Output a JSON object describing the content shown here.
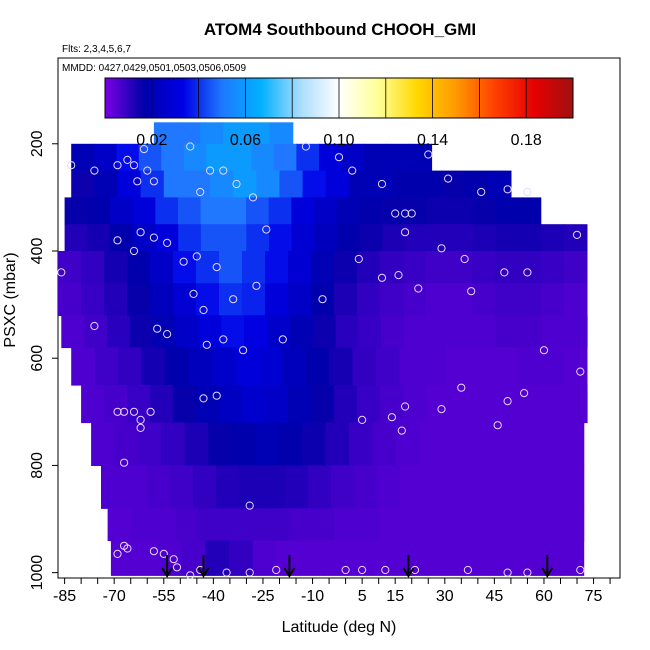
{
  "chart_data": {
    "type": "heatmap",
    "title": "ATOM4 Southbound CHOOH_GMI",
    "flights_note": "Flts: 2,3,4,5,6,7",
    "dates_note": "MMDD: 0427,0429,0501,0503,0506,0509",
    "xlabel": "Latitude (deg N)",
    "ylabel": "PSXC (mbar)",
    "xlim": [
      -87,
      83
    ],
    "ylim": [
      1010,
      40
    ],
    "x_ticks": [
      -85,
      -70,
      -55,
      -40,
      -25,
      -10,
      5,
      15,
      30,
      45,
      60,
      75
    ],
    "y_ticks": [
      200,
      400,
      600,
      800,
      1000
    ],
    "grid": false,
    "colorbar": {
      "location": "top",
      "range": [
        0.0,
        0.2
      ],
      "tick_values": [
        0.02,
        0.06,
        0.1,
        0.14,
        0.18
      ],
      "tick_labels": [
        "0.02",
        "0.06",
        "0.10",
        "0.14",
        "0.18"
      ],
      "colors": [
        "#7a00e6",
        "#0000a8",
        "#0000e6",
        "#1f78ff",
        "#00b0ff",
        "#a8dcff",
        "#ffffff",
        "#ffff99",
        "#ffd700",
        "#ff9900",
        "#ff4000",
        "#e60000",
        "#a01010"
      ]
    },
    "field": {
      "lat_bins": [
        -87,
        -80,
        -73,
        -66,
        -59,
        -52,
        -45,
        -38,
        -31,
        -24,
        -17,
        -10,
        -3,
        4,
        11,
        18,
        25,
        32,
        39,
        46,
        53,
        60,
        67,
        73
      ],
      "rows": [
        {
          "p": [
            160,
            200
          ],
          "lat_range": [
            -58,
            -16
          ],
          "values": [
            0.05,
            0.05,
            0.055,
            0.06,
            0.06,
            0.055
          ]
        },
        {
          "p": [
            200,
            250
          ],
          "lat_range": [
            -83,
            26
          ],
          "values": [
            0.02,
            0.025,
            0.035,
            0.045,
            0.05,
            0.055,
            0.06,
            0.06,
            0.055,
            0.05,
            0.04,
            0.03,
            0.025,
            0.02,
            0.02,
            0.02
          ]
        },
        {
          "p": [
            250,
            300
          ],
          "lat_range": [
            -83,
            50
          ],
          "values": [
            0.015,
            0.02,
            0.03,
            0.04,
            0.05,
            0.05,
            0.055,
            0.06,
            0.055,
            0.045,
            0.035,
            0.03,
            0.02,
            0.02,
            0.018,
            0.018,
            0.016,
            0.018,
            0.02
          ]
        },
        {
          "p": [
            300,
            350
          ],
          "lat_range": [
            -85,
            59
          ],
          "values": [
            0.016,
            0.018,
            0.025,
            0.03,
            0.04,
            0.045,
            0.05,
            0.05,
            0.045,
            0.04,
            0.03,
            0.025,
            0.02,
            0.018,
            0.016,
            0.016,
            0.015,
            0.015,
            0.016,
            0.018,
            0.018
          ]
        },
        {
          "p": [
            350,
            400
          ],
          "lat_range": [
            -85,
            73
          ],
          "values": [
            0.012,
            0.014,
            0.018,
            0.025,
            0.03,
            0.04,
            0.045,
            0.045,
            0.04,
            0.035,
            0.028,
            0.022,
            0.018,
            0.015,
            0.013,
            0.012,
            0.012,
            0.012,
            0.013,
            0.014,
            0.014,
            0.013,
            0.012
          ]
        },
        {
          "p": [
            400,
            460
          ],
          "lat_range": [
            -87,
            73
          ],
          "values": [
            0.008,
            0.01,
            0.014,
            0.018,
            0.025,
            0.035,
            0.04,
            0.045,
            0.04,
            0.035,
            0.028,
            0.02,
            0.015,
            0.012,
            0.01,
            0.009,
            0.008,
            0.008,
            0.009,
            0.01,
            0.01,
            0.009,
            0.008
          ]
        },
        {
          "p": [
            460,
            520
          ],
          "lat_range": [
            -87,
            73
          ],
          "values": [
            0.007,
            0.009,
            0.012,
            0.016,
            0.022,
            0.028,
            0.035,
            0.04,
            0.038,
            0.03,
            0.025,
            0.018,
            0.013,
            0.01,
            0.008,
            0.007,
            0.006,
            0.006,
            0.007,
            0.008,
            0.008,
            0.007,
            0.006
          ]
        },
        {
          "p": [
            520,
            580
          ],
          "lat_range": [
            -86,
            73
          ],
          "values": [
            0.006,
            0.008,
            0.011,
            0.015,
            0.02,
            0.025,
            0.03,
            0.035,
            0.032,
            0.026,
            0.02,
            0.015,
            0.011,
            0.009,
            0.007,
            0.006,
            0.006,
            0.006,
            0.006,
            0.007,
            0.007,
            0.006,
            0.006
          ]
        },
        {
          "p": [
            580,
            650
          ],
          "lat_range": [
            -83,
            73
          ],
          "values": [
            0.006,
            0.008,
            0.01,
            0.014,
            0.018,
            0.022,
            0.026,
            0.03,
            0.028,
            0.022,
            0.018,
            0.014,
            0.01,
            0.008,
            0.006,
            0.006,
            0.005,
            0.005,
            0.005,
            0.006,
            0.006,
            0.005
          ]
        },
        {
          "p": [
            650,
            720
          ],
          "lat_range": [
            -80,
            73
          ],
          "values": [
            0.006,
            0.007,
            0.009,
            0.012,
            0.016,
            0.02,
            0.024,
            0.027,
            0.025,
            0.02,
            0.016,
            0.012,
            0.009,
            0.007,
            0.006,
            0.005,
            0.005,
            0.005,
            0.005,
            0.005,
            0.005,
            0.005
          ]
        },
        {
          "p": [
            720,
            800
          ],
          "lat_range": [
            -77,
            72
          ],
          "values": [
            0.006,
            0.007,
            0.008,
            0.01,
            0.013,
            0.016,
            0.018,
            0.02,
            0.018,
            0.015,
            0.012,
            0.009,
            0.007,
            0.006,
            0.005,
            0.005,
            0.005,
            0.005,
            0.005,
            0.005,
            0.005
          ]
        },
        {
          "p": [
            800,
            880
          ],
          "lat_range": [
            -74,
            72
          ],
          "values": [
            0.006,
            0.006,
            0.007,
            0.008,
            0.01,
            0.012,
            0.013,
            0.013,
            0.012,
            0.01,
            0.008,
            0.007,
            0.006,
            0.005,
            0.005,
            0.005,
            0.005,
            0.005,
            0.005,
            0.005,
            0.005
          ]
        },
        {
          "p": [
            880,
            940
          ],
          "lat_range": [
            -72,
            72
          ],
          "values": [
            0.005,
            0.006,
            0.006,
            0.007,
            0.008,
            0.008,
            0.008,
            0.008,
            0.007,
            0.007,
            0.006,
            0.006,
            0.005,
            0.005,
            0.005,
            0.005,
            0.005,
            0.005,
            0.005,
            0.005,
            0.005
          ]
        },
        {
          "p": [
            940,
            1005
          ],
          "lat_range": [
            -71,
            72
          ],
          "values": [
            0.005,
            0.005,
            0.006,
            0.007,
            0.012,
            0.01,
            0.006,
            0.005,
            0.005,
            0.005,
            0.005,
            0.005,
            0.005,
            0.005,
            0.005,
            0.005,
            0.005,
            0.005,
            0.005,
            0.005
          ]
        }
      ]
    },
    "arrows": [
      -54,
      -43,
      -17,
      19,
      61
    ],
    "observations": [
      {
        "lat": -83,
        "p": 240
      },
      {
        "lat": -76,
        "p": 250
      },
      {
        "lat": -69,
        "p": 240
      },
      {
        "lat": -66,
        "p": 230
      },
      {
        "lat": -64,
        "p": 240
      },
      {
        "lat": -63,
        "p": 270
      },
      {
        "lat": -61,
        "p": 210
      },
      {
        "lat": -60,
        "p": 250
      },
      {
        "lat": -58,
        "p": 270
      },
      {
        "lat": -47,
        "p": 205
      },
      {
        "lat": -44,
        "p": 290
      },
      {
        "lat": -41,
        "p": 250
      },
      {
        "lat": -37,
        "p": 250
      },
      {
        "lat": -33,
        "p": 275
      },
      {
        "lat": -28,
        "p": 300
      },
      {
        "lat": -12,
        "p": 205
      },
      {
        "lat": -2,
        "p": 225
      },
      {
        "lat": 2,
        "p": 250
      },
      {
        "lat": 11,
        "p": 275
      },
      {
        "lat": 25,
        "p": 220
      },
      {
        "lat": 31,
        "p": 265
      },
      {
        "lat": 41,
        "p": 290
      },
      {
        "lat": 49,
        "p": 285
      },
      {
        "lat": 55,
        "p": 290
      },
      {
        "lat": -69,
        "p": 380
      },
      {
        "lat": -64,
        "p": 400
      },
      {
        "lat": -62,
        "p": 365
      },
      {
        "lat": -58,
        "p": 375
      },
      {
        "lat": -54,
        "p": 385
      },
      {
        "lat": -49,
        "p": 420
      },
      {
        "lat": -45,
        "p": 410
      },
      {
        "lat": -39,
        "p": 430
      },
      {
        "lat": -24,
        "p": 360
      },
      {
        "lat": -34,
        "p": 490
      },
      {
        "lat": -27,
        "p": 465
      },
      {
        "lat": -46,
        "p": 480
      },
      {
        "lat": -43,
        "p": 510
      },
      {
        "lat": -7,
        "p": 490
      },
      {
        "lat": 4,
        "p": 415
      },
      {
        "lat": 11,
        "p": 450
      },
      {
        "lat": 15,
        "p": 330
      },
      {
        "lat": 18,
        "p": 330
      },
      {
        "lat": 20,
        "p": 330
      },
      {
        "lat": 18,
        "p": 365
      },
      {
        "lat": 16,
        "p": 445
      },
      {
        "lat": 22,
        "p": 470
      },
      {
        "lat": 29,
        "p": 395
      },
      {
        "lat": 36,
        "p": 415
      },
      {
        "lat": 38,
        "p": 475
      },
      {
        "lat": 48,
        "p": 440
      },
      {
        "lat": 55,
        "p": 440
      },
      {
        "lat": 70,
        "p": 370
      },
      {
        "lat": -86,
        "p": 440
      },
      {
        "lat": -76,
        "p": 540
      },
      {
        "lat": -57,
        "p": 545
      },
      {
        "lat": -54,
        "p": 555
      },
      {
        "lat": -42,
        "p": 575
      },
      {
        "lat": -31,
        "p": 585
      },
      {
        "lat": -37,
        "p": 565
      },
      {
        "lat": -19,
        "p": 565
      },
      {
        "lat": 60,
        "p": 585
      },
      {
        "lat": -43,
        "p": 675
      },
      {
        "lat": -39,
        "p": 670
      },
      {
        "lat": 71,
        "p": 625
      },
      {
        "lat": 35,
        "p": 655
      },
      {
        "lat": 54,
        "p": 665
      },
      {
        "lat": 49,
        "p": 680
      },
      {
        "lat": 29,
        "p": 695
      },
      {
        "lat": 18,
        "p": 690
      },
      {
        "lat": 14,
        "p": 710
      },
      {
        "lat": 5,
        "p": 715
      },
      {
        "lat": 17,
        "p": 735
      },
      {
        "lat": 46,
        "p": 725
      },
      {
        "lat": -69,
        "p": 700
      },
      {
        "lat": -67,
        "p": 700
      },
      {
        "lat": -64,
        "p": 700
      },
      {
        "lat": -59,
        "p": 700
      },
      {
        "lat": -62,
        "p": 715
      },
      {
        "lat": -62,
        "p": 730
      },
      {
        "lat": -67,
        "p": 795
      },
      {
        "lat": -29,
        "p": 875
      },
      {
        "lat": -67,
        "p": 950
      },
      {
        "lat": -66,
        "p": 955
      },
      {
        "lat": -69,
        "p": 965
      },
      {
        "lat": -58,
        "p": 960
      },
      {
        "lat": -55,
        "p": 965
      },
      {
        "lat": -52,
        "p": 975
      },
      {
        "lat": -51,
        "p": 990
      },
      {
        "lat": -47,
        "p": 1005
      },
      {
        "lat": -44,
        "p": 995
      },
      {
        "lat": -36,
        "p": 1000
      },
      {
        "lat": -29,
        "p": 1000
      },
      {
        "lat": -21,
        "p": 995
      },
      {
        "lat": 0,
        "p": 995
      },
      {
        "lat": 5,
        "p": 995
      },
      {
        "lat": 12,
        "p": 995
      },
      {
        "lat": 21,
        "p": 995
      },
      {
        "lat": 37,
        "p": 995
      },
      {
        "lat": 49,
        "p": 1000
      },
      {
        "lat": 55,
        "p": 1000
      },
      {
        "lat": 71,
        "p": 995
      }
    ]
  }
}
